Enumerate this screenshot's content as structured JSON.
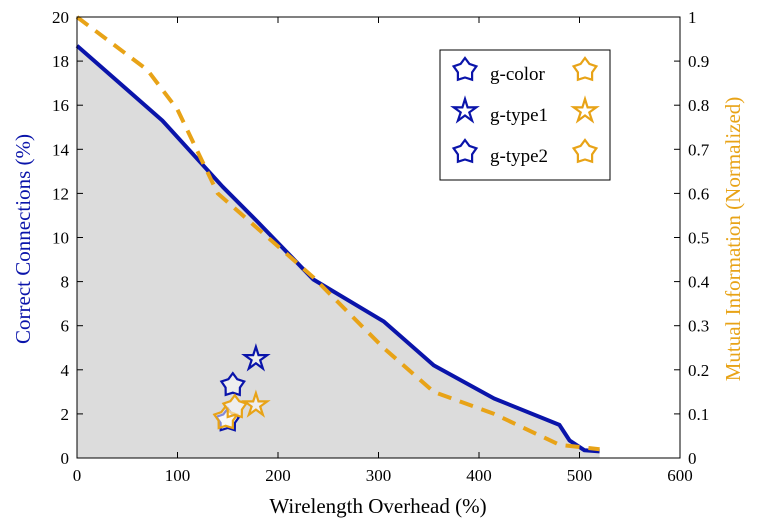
{
  "chart_data": {
    "type": "line",
    "xlabel": "Wirelength Overhead (%)",
    "ylabel": "Correct Connections (%)",
    "y2label": "Mutual Information (Normalized)",
    "xlim": [
      0,
      600
    ],
    "ylim": [
      0,
      20
    ],
    "y2lim": [
      0,
      1
    ],
    "xticks": [
      0,
      100,
      200,
      300,
      400,
      500,
      600
    ],
    "yticks": [
      0,
      2,
      4,
      6,
      8,
      10,
      12,
      14,
      16,
      18,
      20
    ],
    "y2ticks": [
      0,
      0.1,
      0.2,
      0.3,
      0.4,
      0.5,
      0.6,
      0.7,
      0.8,
      0.9,
      1
    ],
    "grid": false,
    "legend_position": "top-right",
    "colors": {
      "primary": "#0a14aa",
      "secondary": "#e8a317",
      "fill": "#dcdcdc"
    },
    "series": [
      {
        "axis": "left",
        "style": "solid",
        "shaded": true,
        "color": "#0a14aa",
        "x": [
          0,
          85,
          145,
          180,
          235,
          305,
          355,
          415,
          480,
          490,
          505,
          520
        ],
        "y": [
          18.7,
          15.3,
          12.3,
          10.7,
          8.1,
          6.2,
          4.2,
          2.7,
          1.5,
          0.8,
          0.35,
          0.3
        ]
      },
      {
        "axis": "right",
        "style": "dashed",
        "color": "#e8a317",
        "x": [
          0,
          70,
          100,
          140,
          180,
          235,
          305,
          355,
          415,
          480,
          500,
          520
        ],
        "y": [
          1.0,
          0.88,
          0.79,
          0.6,
          0.52,
          0.41,
          0.25,
          0.15,
          0.1,
          0.03,
          0.025,
          0.02
        ]
      }
    ],
    "markers": [
      {
        "group": "g-color",
        "shape": "pentagon-star",
        "color": "#0a14aa",
        "axis": "left",
        "x": 150,
        "y": 1.7
      },
      {
        "group": "g-type1",
        "shape": "star",
        "color": "#0a14aa",
        "axis": "left",
        "x": 178,
        "y": 4.5
      },
      {
        "group": "g-type2",
        "shape": "pentagon-star",
        "color": "#0a14aa",
        "axis": "left",
        "x": 155,
        "y": 3.3
      },
      {
        "group": "g-color",
        "shape": "pentagon-star",
        "color": "#e8a317",
        "axis": "right",
        "x": 148,
        "y": 0.09
      },
      {
        "group": "g-type1",
        "shape": "star",
        "color": "#e8a317",
        "axis": "right",
        "x": 178,
        "y": 0.12
      },
      {
        "group": "g-type2",
        "shape": "pentagon-star",
        "color": "#e8a317",
        "axis": "right",
        "x": 157,
        "y": 0.115
      }
    ],
    "legend": [
      {
        "label": "g-color",
        "shape": "pentagon-star"
      },
      {
        "label": "g-type1",
        "shape": "star"
      },
      {
        "label": "g-type2",
        "shape": "pentagon-star"
      }
    ]
  }
}
